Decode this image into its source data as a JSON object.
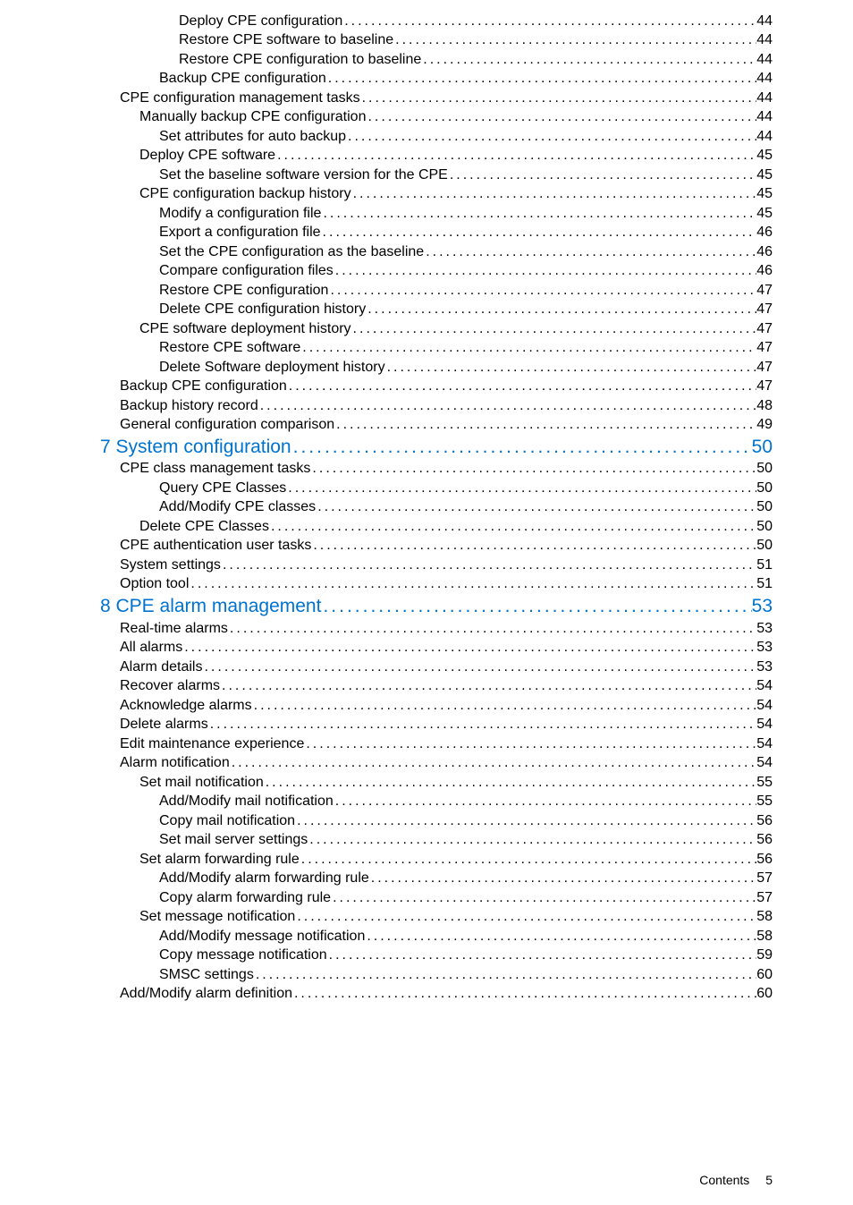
{
  "toc": [
    {
      "level": 5,
      "label": "Deploy CPE configuration",
      "page": "44",
      "chapter": false
    },
    {
      "level": 5,
      "label": "Restore CPE software to baseline ",
      "page": "44",
      "chapter": false
    },
    {
      "level": 5,
      "label": "Restore CPE configuration to baseline ",
      "page": "44",
      "chapter": false
    },
    {
      "level": 4,
      "label": "Backup CPE configuration ",
      "page": "44",
      "chapter": false
    },
    {
      "level": 2,
      "label": "CPE configuration management tasks",
      "page": "44",
      "chapter": false
    },
    {
      "level": 3,
      "label": "Manually backup CPE configuration",
      "page": "44",
      "chapter": false
    },
    {
      "level": 4,
      "label": "Set attributes for auto backup ",
      "page": "44",
      "chapter": false
    },
    {
      "level": 3,
      "label": "Deploy CPE software",
      "page": "45",
      "chapter": false
    },
    {
      "level": 4,
      "label": "Set the baseline software version for the CPE",
      "page": "45",
      "chapter": false
    },
    {
      "level": 3,
      "label": "CPE configuration backup history",
      "page": "45",
      "chapter": false
    },
    {
      "level": 4,
      "label": "Modify a configuration file",
      "page": "45",
      "chapter": false
    },
    {
      "level": 4,
      "label": "Export a configuration file",
      "page": "46",
      "chapter": false
    },
    {
      "level": 4,
      "label": "Set the CPE configuration as the baseline",
      "page": "46",
      "chapter": false
    },
    {
      "level": 4,
      "label": "Compare configuration files",
      "page": "46",
      "chapter": false
    },
    {
      "level": 4,
      "label": "Restore CPE configuration",
      "page": "47",
      "chapter": false
    },
    {
      "level": 4,
      "label": "Delete CPE configuration history",
      "page": "47",
      "chapter": false
    },
    {
      "level": 3,
      "label": "CPE software deployment history",
      "page": "47",
      "chapter": false
    },
    {
      "level": 4,
      "label": "Restore CPE software",
      "page": "47",
      "chapter": false
    },
    {
      "level": 4,
      "label": "Delete Software deployment history",
      "page": "47",
      "chapter": false
    },
    {
      "level": 2,
      "label": "Backup CPE configuration",
      "page": "47",
      "chapter": false
    },
    {
      "level": 2,
      "label": "Backup history record",
      "page": "48",
      "chapter": false
    },
    {
      "level": 2,
      "label": "General configuration comparison",
      "page": "49",
      "chapter": false
    },
    {
      "level": 1,
      "label": "7 System configuration",
      "page": "50",
      "chapter": true
    },
    {
      "level": 2,
      "label": "CPE class management tasks",
      "page": "50",
      "chapter": false
    },
    {
      "level": 4,
      "label": "Query CPE Classes",
      "page": "50",
      "chapter": false
    },
    {
      "level": 4,
      "label": "Add/Modify CPE classes",
      "page": "50",
      "chapter": false
    },
    {
      "level": 3,
      "label": "Delete CPE Classes",
      "page": "50",
      "chapter": false
    },
    {
      "level": 2,
      "label": "CPE authentication user tasks",
      "page": "50",
      "chapter": false
    },
    {
      "level": 2,
      "label": "System settings",
      "page": "51",
      "chapter": false
    },
    {
      "level": 2,
      "label": "Option tool",
      "page": "51",
      "chapter": false
    },
    {
      "level": 1,
      "label": "8 CPE alarm management",
      "page": "53",
      "chapter": true
    },
    {
      "level": 2,
      "label": "Real-time alarms",
      "page": "53",
      "chapter": false
    },
    {
      "level": 2,
      "label": "All alarms",
      "page": "53",
      "chapter": false
    },
    {
      "level": 2,
      "label": "Alarm details",
      "page": "53",
      "chapter": false
    },
    {
      "level": 2,
      "label": "Recover alarms",
      "page": "54",
      "chapter": false
    },
    {
      "level": 2,
      "label": "Acknowledge alarms",
      "page": "54",
      "chapter": false
    },
    {
      "level": 2,
      "label": "Delete alarms",
      "page": "54",
      "chapter": false
    },
    {
      "level": 2,
      "label": "Edit maintenance experience",
      "page": "54",
      "chapter": false
    },
    {
      "level": 2,
      "label": "Alarm notification",
      "page": "54",
      "chapter": false
    },
    {
      "level": 3,
      "label": "Set mail notification",
      "page": "55",
      "chapter": false
    },
    {
      "level": 4,
      "label": "Add/Modify mail notification",
      "page": "55",
      "chapter": false
    },
    {
      "level": 4,
      "label": "Copy mail notification",
      "page": "56",
      "chapter": false
    },
    {
      "level": 4,
      "label": "Set mail server settings",
      "page": "56",
      "chapter": false
    },
    {
      "level": 3,
      "label": "Set alarm forwarding rule",
      "page": "56",
      "chapter": false
    },
    {
      "level": 4,
      "label": "Add/Modify alarm forwarding rule",
      "page": "57",
      "chapter": false
    },
    {
      "level": 4,
      "label": "Copy alarm forwarding rule",
      "page": "57",
      "chapter": false
    },
    {
      "level": 3,
      "label": "Set message notification",
      "page": "58",
      "chapter": false
    },
    {
      "level": 4,
      "label": "Add/Modify message notification",
      "page": "58",
      "chapter": false
    },
    {
      "level": 4,
      "label": "Copy message notification",
      "page": "59",
      "chapter": false
    },
    {
      "level": 4,
      "label": "SMSC settings",
      "page": "60",
      "chapter": false
    },
    {
      "level": 2,
      "label": "Add/Modify alarm definition",
      "page": "60",
      "chapter": false
    }
  ],
  "footer": {
    "label": "Contents",
    "page": "5"
  },
  "colors": {
    "link": "#0073cf",
    "text": "#000000",
    "background": "#ffffff"
  },
  "typography": {
    "body_fontsize": 16,
    "chapter_fontsize": 21,
    "footer_fontsize": 14
  }
}
